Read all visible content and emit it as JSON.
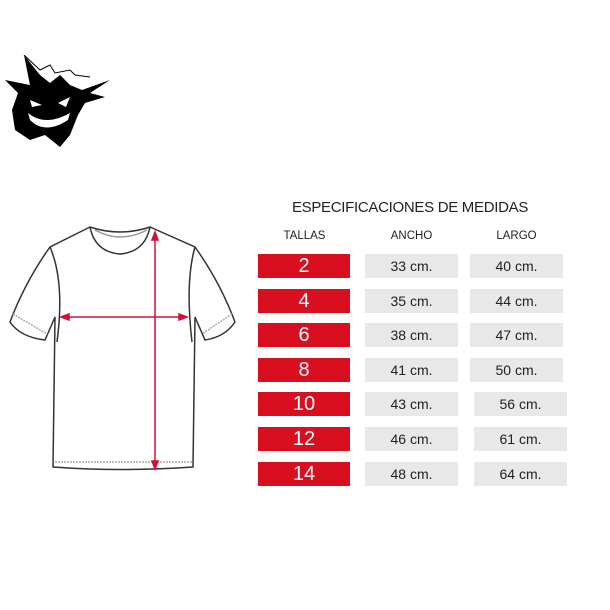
{
  "title": "ESPECIFICACIONES DE MEDIDAS",
  "headers": {
    "size": "TALLAS",
    "width": "ANCHO",
    "length": "LARGO"
  },
  "rows": [
    {
      "size": "2",
      "width": "33 cm.",
      "length": "40 cm."
    },
    {
      "size": "4",
      "width": "35 cm.",
      "length": "44 cm."
    },
    {
      "size": "6",
      "width": "38 cm.",
      "length": "47 cm."
    },
    {
      "size": "8",
      "width": "41 cm.",
      "length": "50 cm."
    },
    {
      "size": "10",
      "width": "43 cm.",
      "length": "56 cm."
    },
    {
      "size": "12",
      "width": "46 cm.",
      "length": "61 cm."
    },
    {
      "size": "14",
      "width": "48 cm.",
      "length": "64 cm."
    }
  ],
  "colors": {
    "accent": "#d90f20",
    "cell": "#e8e8e8"
  },
  "icons": {
    "logo": "ghost-silhouette-logo",
    "garment": "tshirt-outline"
  }
}
